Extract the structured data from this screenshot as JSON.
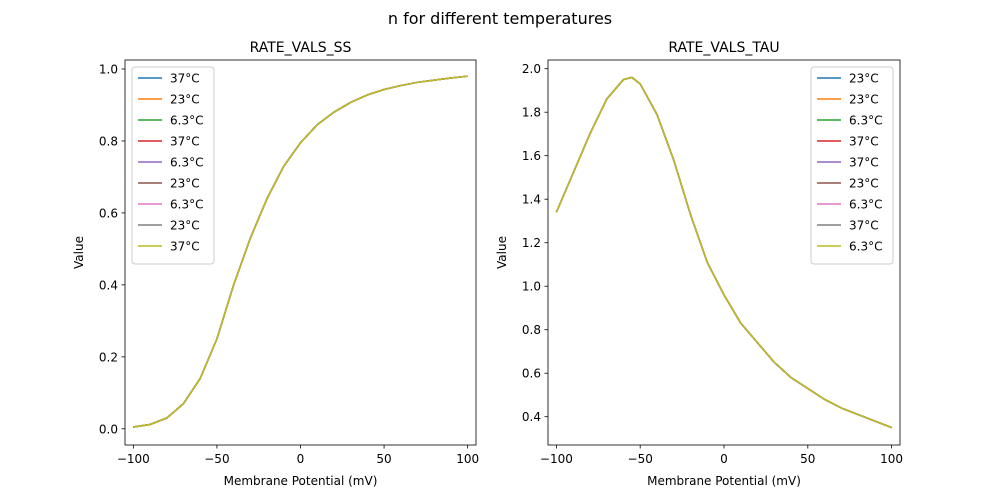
{
  "figure": {
    "suptitle": "n for different temperatures"
  },
  "chart_data": [
    {
      "type": "line",
      "title": "RATE_VALS_SS",
      "xlabel": "Membrane Potential (mV)",
      "ylabel": "Value",
      "xlim": [
        -105,
        105
      ],
      "ylim": [
        -0.045,
        1.025
      ],
      "xticks": [
        -100,
        -50,
        0,
        50,
        100
      ],
      "xtick_labels": [
        "−100",
        "−50",
        "0",
        "50",
        "100"
      ],
      "yticks": [
        0.0,
        0.2,
        0.4,
        0.6,
        0.8,
        1.0
      ],
      "ytick_labels": [
        "0.0",
        "0.2",
        "0.4",
        "0.6",
        "0.8",
        "1.0"
      ],
      "grid": false,
      "legend_position": "top-left",
      "x": [
        -100,
        -90,
        -80,
        -70,
        -60,
        -50,
        -40,
        -30,
        -20,
        -10,
        0,
        10,
        20,
        30,
        40,
        50,
        60,
        70,
        80,
        90,
        100
      ],
      "series": [
        {
          "name": "37°C",
          "color": "#1f77b4",
          "values": [
            0.005,
            0.012,
            0.03,
            0.07,
            0.14,
            0.25,
            0.4,
            0.53,
            0.64,
            0.73,
            0.795,
            0.845,
            0.88,
            0.907,
            0.928,
            0.943,
            0.954,
            0.963,
            0.969,
            0.975,
            0.98
          ]
        },
        {
          "name": "23°C",
          "color": "#ff7f0e",
          "values": [
            0.005,
            0.012,
            0.03,
            0.07,
            0.14,
            0.25,
            0.4,
            0.53,
            0.64,
            0.73,
            0.795,
            0.845,
            0.88,
            0.907,
            0.928,
            0.943,
            0.954,
            0.963,
            0.969,
            0.975,
            0.98
          ]
        },
        {
          "name": "6.3°C",
          "color": "#2ca02c",
          "values": [
            0.005,
            0.012,
            0.03,
            0.07,
            0.14,
            0.25,
            0.4,
            0.53,
            0.64,
            0.73,
            0.795,
            0.845,
            0.88,
            0.907,
            0.928,
            0.943,
            0.954,
            0.963,
            0.969,
            0.975,
            0.98
          ]
        },
        {
          "name": "37°C",
          "color": "#d62728",
          "values": [
            0.005,
            0.012,
            0.03,
            0.07,
            0.14,
            0.25,
            0.4,
            0.53,
            0.64,
            0.73,
            0.795,
            0.845,
            0.88,
            0.907,
            0.928,
            0.943,
            0.954,
            0.963,
            0.969,
            0.975,
            0.98
          ]
        },
        {
          "name": "6.3°C",
          "color": "#9467bd",
          "values": [
            0.005,
            0.012,
            0.03,
            0.07,
            0.14,
            0.25,
            0.4,
            0.53,
            0.64,
            0.73,
            0.795,
            0.845,
            0.88,
            0.907,
            0.928,
            0.943,
            0.954,
            0.963,
            0.969,
            0.975,
            0.98
          ]
        },
        {
          "name": "23°C",
          "color": "#8c564b",
          "values": [
            0.005,
            0.012,
            0.03,
            0.07,
            0.14,
            0.25,
            0.4,
            0.53,
            0.64,
            0.73,
            0.795,
            0.845,
            0.88,
            0.907,
            0.928,
            0.943,
            0.954,
            0.963,
            0.969,
            0.975,
            0.98
          ]
        },
        {
          "name": "6.3°C",
          "color": "#e377c2",
          "values": [
            0.005,
            0.012,
            0.03,
            0.07,
            0.14,
            0.25,
            0.4,
            0.53,
            0.64,
            0.73,
            0.795,
            0.845,
            0.88,
            0.907,
            0.928,
            0.943,
            0.954,
            0.963,
            0.969,
            0.975,
            0.98
          ]
        },
        {
          "name": "23°C",
          "color": "#7f7f7f",
          "values": [
            0.005,
            0.012,
            0.03,
            0.07,
            0.14,
            0.25,
            0.4,
            0.53,
            0.64,
            0.73,
            0.795,
            0.845,
            0.88,
            0.907,
            0.928,
            0.943,
            0.954,
            0.963,
            0.969,
            0.975,
            0.98
          ]
        },
        {
          "name": "37°C",
          "color": "#bcbd22",
          "values": [
            0.005,
            0.012,
            0.03,
            0.07,
            0.14,
            0.25,
            0.4,
            0.53,
            0.64,
            0.73,
            0.795,
            0.845,
            0.88,
            0.907,
            0.928,
            0.943,
            0.954,
            0.963,
            0.969,
            0.975,
            0.98
          ]
        }
      ]
    },
    {
      "type": "line",
      "title": "RATE_VALS_TAU",
      "xlabel": "Membrane Potential (mV)",
      "ylabel": "Value",
      "xlim": [
        -105,
        105
      ],
      "ylim": [
        0.27,
        2.04
      ],
      "xticks": [
        -100,
        -50,
        0,
        50,
        100
      ],
      "xtick_labels": [
        "−100",
        "−50",
        "0",
        "50",
        "100"
      ],
      "yticks": [
        0.4,
        0.6,
        0.8,
        1.0,
        1.2,
        1.4,
        1.6,
        1.8,
        2.0
      ],
      "ytick_labels": [
        "0.4",
        "0.6",
        "0.8",
        "1.0",
        "1.2",
        "1.4",
        "1.6",
        "1.8",
        "2.0"
      ],
      "grid": false,
      "legend_position": "top-right",
      "x": [
        -100,
        -90,
        -80,
        -70,
        -60,
        -55,
        -50,
        -40,
        -30,
        -20,
        -10,
        0,
        10,
        20,
        30,
        40,
        50,
        60,
        70,
        80,
        90,
        100
      ],
      "series": [
        {
          "name": "23°C",
          "color": "#1f77b4",
          "values": [
            1.34,
            1.52,
            1.7,
            1.86,
            1.95,
            1.96,
            1.93,
            1.79,
            1.58,
            1.33,
            1.11,
            0.96,
            0.83,
            0.74,
            0.65,
            0.58,
            0.53,
            0.48,
            0.44,
            0.41,
            0.38,
            0.35
          ]
        },
        {
          "name": "23°C",
          "color": "#ff7f0e",
          "values": [
            1.34,
            1.52,
            1.7,
            1.86,
            1.95,
            1.96,
            1.93,
            1.79,
            1.58,
            1.33,
            1.11,
            0.96,
            0.83,
            0.74,
            0.65,
            0.58,
            0.53,
            0.48,
            0.44,
            0.41,
            0.38,
            0.35
          ]
        },
        {
          "name": "6.3°C",
          "color": "#2ca02c",
          "values": [
            1.34,
            1.52,
            1.7,
            1.86,
            1.95,
            1.96,
            1.93,
            1.79,
            1.58,
            1.33,
            1.11,
            0.96,
            0.83,
            0.74,
            0.65,
            0.58,
            0.53,
            0.48,
            0.44,
            0.41,
            0.38,
            0.35
          ]
        },
        {
          "name": "37°C",
          "color": "#d62728",
          "values": [
            1.34,
            1.52,
            1.7,
            1.86,
            1.95,
            1.96,
            1.93,
            1.79,
            1.58,
            1.33,
            1.11,
            0.96,
            0.83,
            0.74,
            0.65,
            0.58,
            0.53,
            0.48,
            0.44,
            0.41,
            0.38,
            0.35
          ]
        },
        {
          "name": "37°C",
          "color": "#9467bd",
          "values": [
            1.34,
            1.52,
            1.7,
            1.86,
            1.95,
            1.96,
            1.93,
            1.79,
            1.58,
            1.33,
            1.11,
            0.96,
            0.83,
            0.74,
            0.65,
            0.58,
            0.53,
            0.48,
            0.44,
            0.41,
            0.38,
            0.35
          ]
        },
        {
          "name": "23°C",
          "color": "#8c564b",
          "values": [
            1.34,
            1.52,
            1.7,
            1.86,
            1.95,
            1.96,
            1.93,
            1.79,
            1.58,
            1.33,
            1.11,
            0.96,
            0.83,
            0.74,
            0.65,
            0.58,
            0.53,
            0.48,
            0.44,
            0.41,
            0.38,
            0.35
          ]
        },
        {
          "name": "6.3°C",
          "color": "#e377c2",
          "values": [
            1.34,
            1.52,
            1.7,
            1.86,
            1.95,
            1.96,
            1.93,
            1.79,
            1.58,
            1.33,
            1.11,
            0.96,
            0.83,
            0.74,
            0.65,
            0.58,
            0.53,
            0.48,
            0.44,
            0.41,
            0.38,
            0.35
          ]
        },
        {
          "name": "37°C",
          "color": "#7f7f7f",
          "values": [
            1.34,
            1.52,
            1.7,
            1.86,
            1.95,
            1.96,
            1.93,
            1.79,
            1.58,
            1.33,
            1.11,
            0.96,
            0.83,
            0.74,
            0.65,
            0.58,
            0.53,
            0.48,
            0.44,
            0.41,
            0.38,
            0.35
          ]
        },
        {
          "name": "6.3°C",
          "color": "#bcbd22",
          "values": [
            1.34,
            1.52,
            1.7,
            1.86,
            1.95,
            1.96,
            1.93,
            1.79,
            1.58,
            1.33,
            1.11,
            0.96,
            0.83,
            0.74,
            0.65,
            0.58,
            0.53,
            0.48,
            0.44,
            0.41,
            0.38,
            0.35
          ]
        }
      ]
    }
  ]
}
